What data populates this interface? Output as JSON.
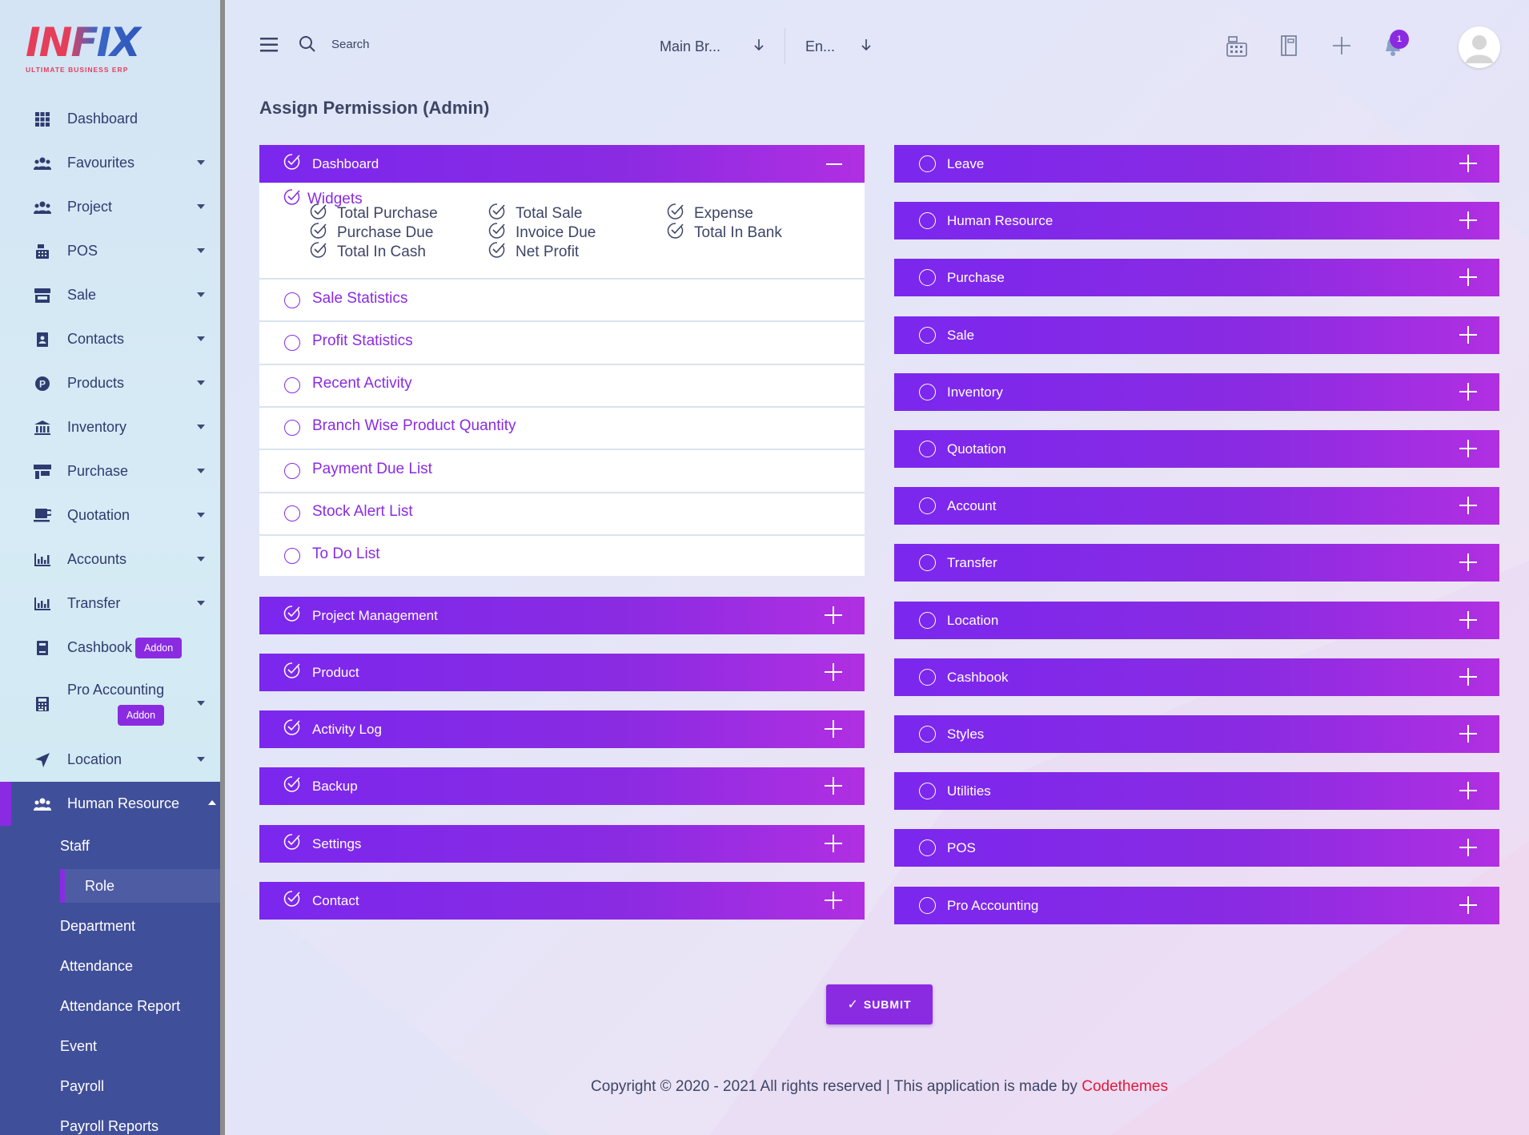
{
  "brand": {
    "logo_text": "INFIX",
    "tagline": "ULTIMATE BUSINESS ERP"
  },
  "sidebar": {
    "items": [
      {
        "label": "Dashboard",
        "icon": "grid-icon",
        "caret": false
      },
      {
        "label": "Favourites",
        "icon": "users-icon",
        "caret": true
      },
      {
        "label": "Project",
        "icon": "users-icon",
        "caret": true
      },
      {
        "label": "POS",
        "icon": "cash-register-icon",
        "caret": true
      },
      {
        "label": "Sale",
        "icon": "store-icon",
        "caret": true
      },
      {
        "label": "Contacts",
        "icon": "contact-book-icon",
        "caret": true
      },
      {
        "label": "Products",
        "icon": "product-p-icon",
        "caret": true
      },
      {
        "label": "Inventory",
        "icon": "warehouse-icon",
        "caret": true
      },
      {
        "label": "Purchase",
        "icon": "shop-icon",
        "caret": true
      },
      {
        "label": "Quotation",
        "icon": "cup-icon",
        "caret": true
      },
      {
        "label": "Accounts",
        "icon": "bar-chart-icon",
        "caret": true
      },
      {
        "label": "Transfer",
        "icon": "bar-chart-icon",
        "caret": true
      },
      {
        "label": "Cashbook",
        "icon": "book-icon",
        "caret": false,
        "addon": "Addon"
      },
      {
        "label": "Pro Accounting",
        "icon": "calculator-icon",
        "caret": true,
        "addon": "Addon"
      },
      {
        "label": "Location",
        "icon": "location-arrow-icon",
        "caret": true
      }
    ],
    "hr": {
      "label": "Human Resource",
      "sub_items": [
        "Staff",
        "Role",
        "Department",
        "Attendance",
        "Attendance Report",
        "Event",
        "Payroll",
        "Payroll Reports"
      ],
      "active": "Role"
    }
  },
  "topbar": {
    "search_label": "Search",
    "branch_select": "Main Br...",
    "language_select": "En...",
    "notification_count": "1"
  },
  "page": {
    "title": "Assign Permission (Admin)",
    "left_panels": [
      {
        "label": "Dashboard",
        "checked": true,
        "expanded": true
      },
      {
        "label": "Project Management",
        "checked": true
      },
      {
        "label": "Product",
        "checked": true
      },
      {
        "label": "Activity Log",
        "checked": true
      },
      {
        "label": "Backup",
        "checked": true
      },
      {
        "label": "Settings",
        "checked": true
      },
      {
        "label": "Contact",
        "checked": true
      }
    ],
    "dashboard": {
      "widgets_label": "Widgets",
      "widget_items": [
        [
          "Total Purchase",
          "Purchase Due",
          "Total In Cash"
        ],
        [
          "Total Sale",
          "Invoice Due",
          "Net Profit"
        ],
        [
          "Expense",
          "Total In Bank"
        ]
      ],
      "sub_permissions": [
        "Sale Statistics",
        "Profit Statistics",
        "Recent Activity",
        "Branch Wise Product Quantity",
        "Payment Due List",
        "Stock Alert List",
        "To Do List"
      ]
    },
    "right_panels": [
      "Leave",
      "Human Resource",
      "Purchase",
      "Sale",
      "Inventory",
      "Quotation",
      "Account",
      "Transfer",
      "Location",
      "Cashbook",
      "Styles",
      "Utilities",
      "POS",
      "Pro Accounting"
    ],
    "submit_label": "SUBMIT"
  },
  "footer": {
    "text": "Copyright © 2020 - 2021 All rights reserved | This application is made by ",
    "brand": "Codethemes"
  },
  "colors": {
    "accent": "#8a2be2",
    "sidebar_active": "#404f99",
    "brand_red": "#e11b3c"
  }
}
